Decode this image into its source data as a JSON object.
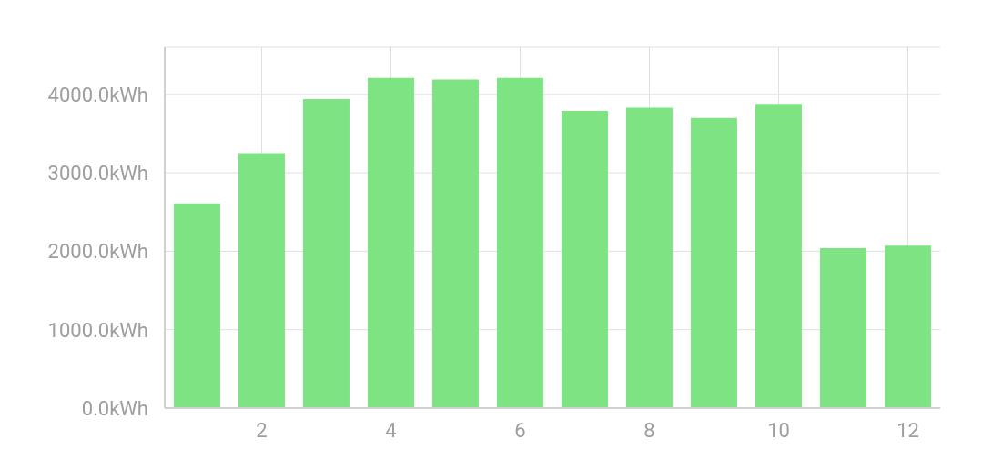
{
  "chart_data": {
    "type": "bar",
    "categories": [
      null,
      "2",
      null,
      "4",
      null,
      "6",
      null,
      "8",
      null,
      "10",
      null,
      "12"
    ],
    "values": [
      2610,
      3250,
      3940,
      4210,
      4190,
      4210,
      3790,
      3830,
      3700,
      3880,
      2040,
      2070
    ],
    "color": "#7de383",
    "ylim": [
      0,
      4600
    ],
    "yticks": [
      {
        "value": 0,
        "label": "0.0kWh"
      },
      {
        "value": 1000,
        "label": "1000.0kWh"
      },
      {
        "value": 2000,
        "label": "2000.0kWh"
      },
      {
        "value": 3000,
        "label": "3000.0kWh"
      },
      {
        "value": 4000,
        "label": "4000.0kWh"
      }
    ],
    "grid": true
  }
}
